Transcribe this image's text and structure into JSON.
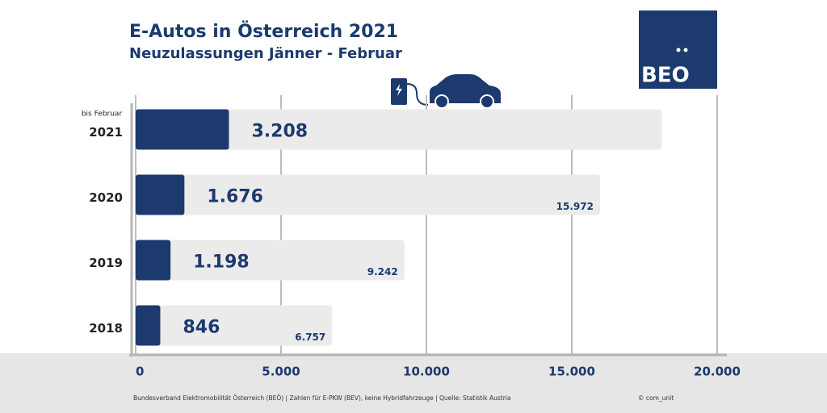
{
  "chart_data": {
    "type": "bar",
    "orientation": "horizontal",
    "title": "E-Autos in Österreich 2021",
    "subtitle": "Neuzulassungen Jänner - Februar",
    "annotation": "bis Februar",
    "logo": "BEO",
    "source": "Bundesverband Elektromobilität Österreich (BEÖ) | Zahlen für E-PKW (BEV), keine Hybridfahrzeuge | Quelle: Statistik Austria",
    "credit": "© com_unit",
    "categories": [
      "2021",
      "2020",
      "2019",
      "2018"
    ],
    "series": [
      {
        "color": "#ebebeb",
        "values": [
          18100,
          15972,
          9242,
          6757
        ],
        "value_labels": [
          null,
          "15.972",
          "9.242",
          "6.757"
        ]
      },
      {
        "color": "#1c3a6e",
        "values": [
          3208,
          1676,
          1198,
          846
        ],
        "value_labels": [
          "3.208",
          "1.676",
          "1.198",
          "846"
        ]
      }
    ],
    "xlim": [
      0,
      20000
    ],
    "xticks": [
      0,
      {
        "value": 5000,
        "label": "5.000"
      },
      {
        "value": 10000,
        "label": "10.000"
      },
      {
        "value": 15000,
        "label": "15.000"
      },
      {
        "value": 20000,
        "label": "20.000"
      }
    ],
    "grid": true
  }
}
